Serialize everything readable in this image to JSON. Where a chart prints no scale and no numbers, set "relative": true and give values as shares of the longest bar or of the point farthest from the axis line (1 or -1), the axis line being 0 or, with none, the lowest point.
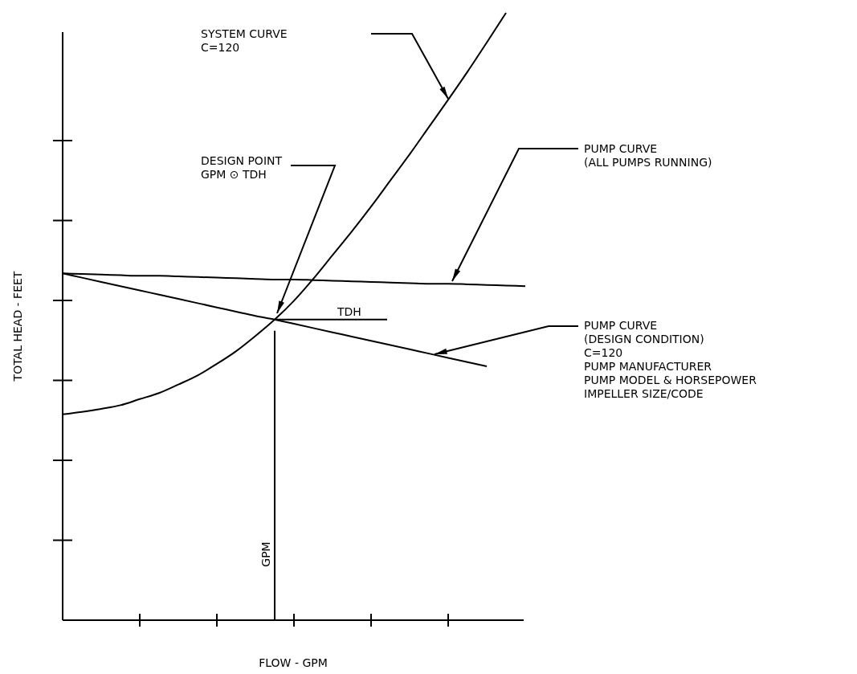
{
  "chart_data": {
    "type": "line",
    "relative": true,
    "xlabel": "FLOW - GPM",
    "ylabel": "TOTAL HEAD - FEET",
    "categories": [
      null,
      null,
      null,
      null,
      null,
      null,
      null,
      null,
      null,
      null,
      null,
      null,
      null,
      null,
      null,
      null,
      null,
      null,
      null,
      null,
      null,
      null,
      null,
      null,
      null
    ],
    "series": [
      {
        "color": "#000000",
        "values": [
          0.339,
          0.343,
          0.348,
          0.354,
          0.364,
          0.374,
          0.388,
          0.403,
          0.422,
          0.443,
          0.468,
          0.495,
          0.526,
          0.562,
          0.601,
          0.64,
          0.681,
          0.724,
          0.767,
          0.812,
          0.857,
          0.903,
          0.951,
          1,
          null
        ]
      },
      {
        "color": "#000000",
        "values": [
          0.571,
          0.57,
          0.569,
          0.568,
          0.567,
          0.567,
          0.566,
          0.565,
          0.564,
          0.563,
          0.562,
          0.561,
          0.561,
          0.56,
          0.559,
          0.558,
          0.557,
          0.556,
          0.555,
          0.554,
          0.554,
          0.553,
          0.552,
          0.551,
          0.55
        ]
      },
      {
        "color": "#000000",
        "values": [
          0.571,
          0.564,
          0.557,
          0.55,
          0.543,
          0.536,
          0.529,
          0.522,
          0.515,
          0.508,
          0.501,
          0.495,
          0.488,
          0.481,
          0.474,
          0.467,
          0.46,
          0.453,
          0.446,
          0.439,
          0.432,
          0.425,
          0.418,
          null,
          null
        ]
      }
    ],
    "annotations": [
      "SYSTEM CURVE\nC=120",
      "DESIGN POINT\nGPM ⊙ TDH",
      "PUMP CURVE\n(ALL PUMPS RUNNING)",
      "PUMP CURVE\n(DESIGN CONDITION)\nC=120\nPUMP MANUFACTURER\nPUMP MODEL & HORSEPOWER\nIMPELLER SIZE/CODE",
      "TDH",
      "GPM"
    ]
  }
}
